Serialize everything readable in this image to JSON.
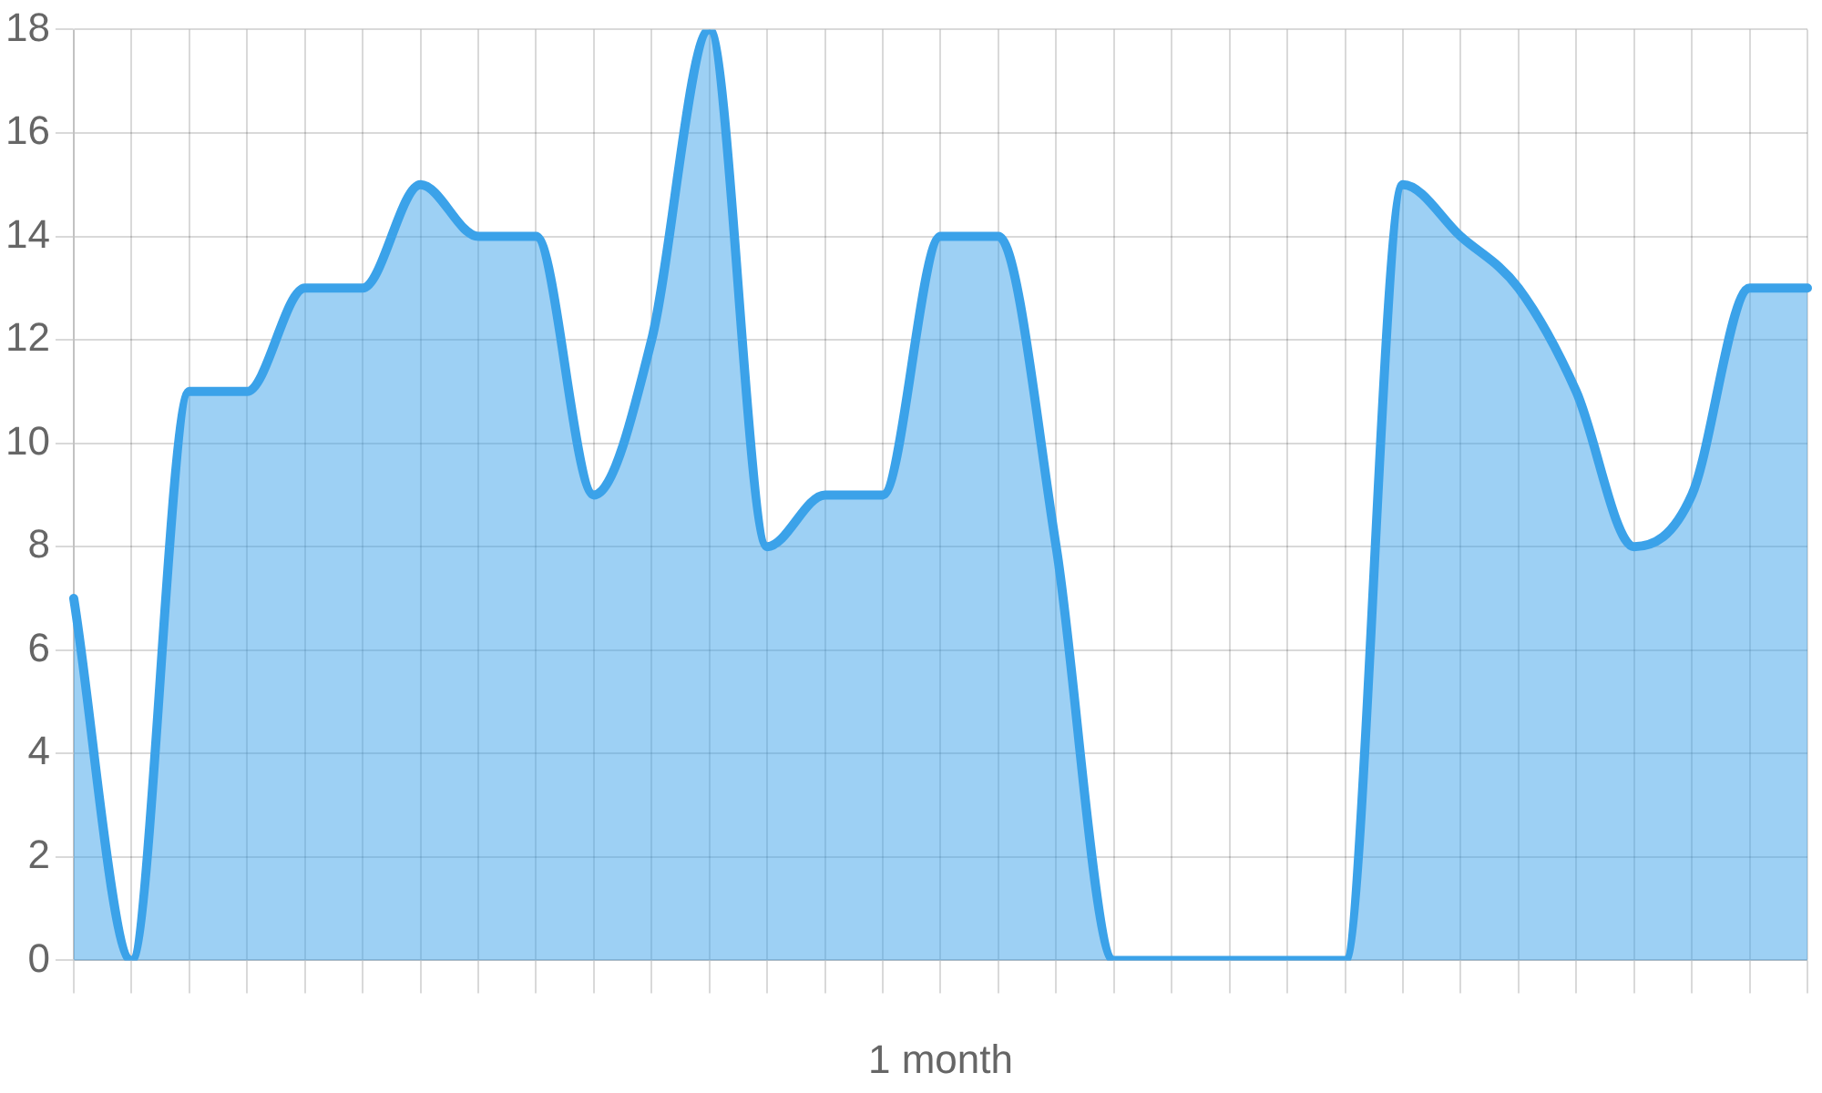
{
  "chart_data": {
    "type": "area",
    "xlabel": "1 month",
    "categories": [
      null,
      null,
      null,
      null,
      null,
      null,
      null,
      null,
      null,
      null,
      null,
      null,
      null,
      null,
      null,
      null,
      null,
      null,
      null,
      null,
      null,
      null,
      null,
      null,
      null,
      null,
      null,
      null,
      null,
      null,
      null
    ],
    "series": [
      {
        "color": "#3ba2e9",
        "values": [
          7,
          0,
          11,
          11,
          13,
          13,
          15,
          14,
          14,
          9,
          12,
          18,
          8,
          9,
          9,
          14,
          14,
          8,
          0,
          0,
          0,
          0,
          0,
          15,
          14,
          13,
          11,
          8,
          9,
          13,
          13
        ]
      }
    ],
    "ylim": [
      0,
      18
    ],
    "yticks": [
      0,
      2,
      4,
      6,
      8,
      10,
      12,
      14,
      16,
      18
    ],
    "grid": true,
    "legend": false
  }
}
